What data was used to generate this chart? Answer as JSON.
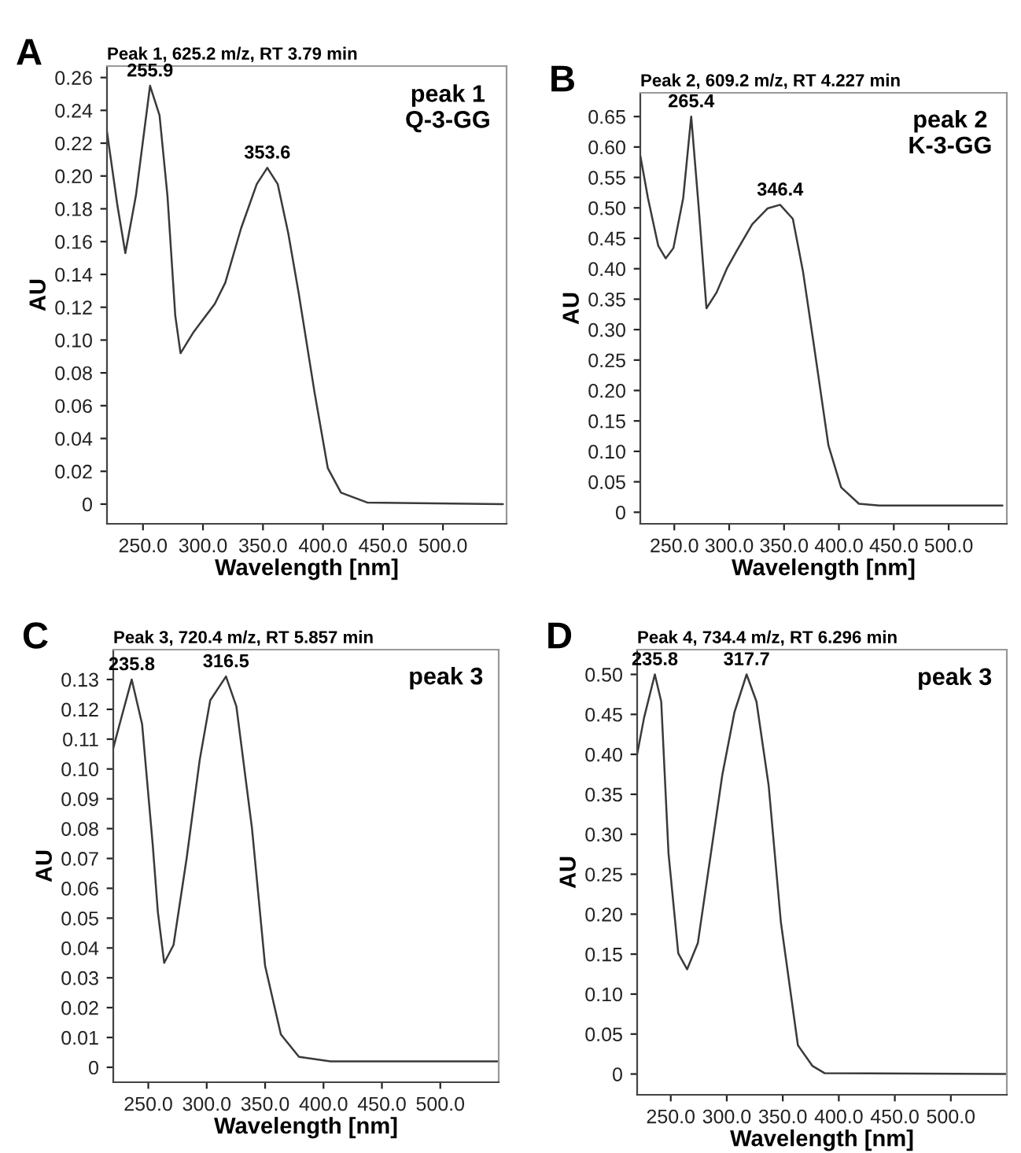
{
  "chart_data": [
    {
      "type": "line",
      "title": "Peak 1, 625.2 m/z, RT 3.79 min",
      "xlabel": "Wavelength [nm]",
      "ylabel": "AU",
      "x": [
        220,
        228.7,
        235.3,
        244.1,
        255.9,
        263.8,
        270.4,
        276.9,
        281.3,
        292.3,
        309.8,
        318.6,
        331.7,
        344.8,
        353.6,
        362.3,
        371.1,
        379.9,
        393,
        404,
        415,
        436.8,
        550
      ],
      "series": [
        {
          "color": "#3a3a3a",
          "values": [
            0.227,
            0.182,
            0.153,
            0.188,
            0.255,
            0.237,
            0.188,
            0.115,
            0.092,
            0.105,
            0.122,
            0.135,
            0.168,
            0.195,
            0.205,
            0.195,
            0.165,
            0.128,
            0.068,
            0.022,
            0.007,
            0.001,
            0.0
          ]
        }
      ],
      "xlim": [
        220,
        553
      ],
      "ylim": [
        -0.012,
        0.267
      ],
      "xticks": [
        {
          "value": 250,
          "label": "250.0"
        },
        {
          "value": 300,
          "label": "300.0"
        },
        {
          "value": 350,
          "label": "350.0"
        },
        {
          "value": 400,
          "label": "400.0"
        },
        {
          "value": 450,
          "label": "450.0"
        },
        {
          "value": 500,
          "label": "500.0"
        }
      ],
      "yticks": [
        {
          "value": 0,
          "label": "0"
        },
        {
          "value": 0.02,
          "label": "0.02"
        },
        {
          "value": 0.04,
          "label": "0.04"
        },
        {
          "value": 0.06,
          "label": "0.06"
        },
        {
          "value": 0.08,
          "label": "0.08"
        },
        {
          "value": 0.1,
          "label": "0.10"
        },
        {
          "value": 0.12,
          "label": "0.12"
        },
        {
          "value": 0.14,
          "label": "0.14"
        },
        {
          "value": 0.16,
          "label": "0.16"
        },
        {
          "value": 0.18,
          "label": "0.18"
        },
        {
          "value": 0.2,
          "label": "0.20"
        },
        {
          "value": 0.22,
          "label": "0.22"
        },
        {
          "value": 0.24,
          "label": "0.24"
        },
        {
          "value": 0.26,
          "label": "0.26"
        }
      ],
      "annotations": [
        "A",
        "peak 1\nQ-3-GG",
        {
          "text": "255.9",
          "x": 255.9,
          "y": 0.255
        },
        {
          "text": "353.6",
          "x": 353.6,
          "y": 0.205
        }
      ]
    },
    {
      "type": "line",
      "title": "Peak 2, 609.2 m/z, RT 4.227 min",
      "xlabel": "Wavelength [nm]",
      "ylabel": "AU",
      "x": [
        219.1,
        226,
        235.3,
        242.2,
        249.2,
        258.1,
        265.4,
        272.3,
        279.3,
        288.5,
        297.8,
        307.1,
        321,
        334.9,
        346.4,
        358,
        367.3,
        376.5,
        390.4,
        402,
        418.2,
        436.7,
        549
      ],
      "series": [
        {
          "color": "#3a3a3a",
          "values": [
            0.585,
            0.516,
            0.438,
            0.417,
            0.434,
            0.516,
            0.65,
            0.499,
            0.335,
            0.361,
            0.4,
            0.43,
            0.473,
            0.499,
            0.505,
            0.482,
            0.395,
            0.283,
            0.11,
            0.041,
            0.014,
            0.011,
            0.011
          ]
        }
      ],
      "xlim": [
        219,
        553
      ],
      "ylim": [
        -0.019,
        0.689
      ],
      "xticks": [
        {
          "value": 250,
          "label": "250.0"
        },
        {
          "value": 300,
          "label": "300.0"
        },
        {
          "value": 350,
          "label": "350.0"
        },
        {
          "value": 400,
          "label": "400.0"
        },
        {
          "value": 450,
          "label": "450.0"
        },
        {
          "value": 500,
          "label": "500.0"
        }
      ],
      "yticks": [
        {
          "value": 0,
          "label": "0"
        },
        {
          "value": 0.05,
          "label": "0.05"
        },
        {
          "value": 0.1,
          "label": "0.10"
        },
        {
          "value": 0.15,
          "label": "0.15"
        },
        {
          "value": 0.2,
          "label": "0.20"
        },
        {
          "value": 0.25,
          "label": "0.25"
        },
        {
          "value": 0.3,
          "label": "0.30"
        },
        {
          "value": 0.35,
          "label": "0.35"
        },
        {
          "value": 0.4,
          "label": "0.40"
        },
        {
          "value": 0.45,
          "label": "0.45"
        },
        {
          "value": 0.5,
          "label": "0.50"
        },
        {
          "value": 0.55,
          "label": "0.55"
        },
        {
          "value": 0.6,
          "label": "0.60"
        },
        {
          "value": 0.65,
          "label": "0.65"
        }
      ],
      "annotations": [
        "B",
        "peak 2\nK-3-GG",
        {
          "text": "265.4",
          "x": 265.4,
          "y": 0.65
        },
        {
          "text": "346.4",
          "x": 346.4,
          "y": 0.505
        }
      ]
    },
    {
      "type": "line",
      "title": "Peak 3, 720.4 m/z, RT 5.857 min",
      "xlabel": "Wavelength [nm]",
      "ylabel": "AU",
      "x": [
        220,
        226.8,
        235.8,
        244.7,
        253.7,
        258.2,
        263.6,
        271.6,
        282.8,
        294,
        303,
        316.5,
        325.4,
        338.8,
        350,
        363.5,
        379,
        406,
        549
      ],
      "series": [
        {
          "color": "#3a3a3a",
          "values": [
            0.107,
            0.117,
            0.13,
            0.115,
            0.075,
            0.052,
            0.035,
            0.041,
            0.07,
            0.103,
            0.123,
            0.131,
            0.121,
            0.08,
            0.034,
            0.011,
            0.0035,
            0.002,
            0.002
          ]
        }
      ],
      "xlim": [
        220,
        550
      ],
      "ylim": [
        -0.005,
        0.14
      ],
      "xticks": [
        {
          "value": 250,
          "label": "250.0"
        },
        {
          "value": 300,
          "label": "300.0"
        },
        {
          "value": 350,
          "label": "350.0"
        },
        {
          "value": 400,
          "label": "400.0"
        },
        {
          "value": 450,
          "label": "450.0"
        },
        {
          "value": 500,
          "label": "500.0"
        }
      ],
      "yticks": [
        {
          "value": 0,
          "label": "0"
        },
        {
          "value": 0.01,
          "label": "0.01"
        },
        {
          "value": 0.02,
          "label": "0.02"
        },
        {
          "value": 0.03,
          "label": "0.03"
        },
        {
          "value": 0.04,
          "label": "0.04"
        },
        {
          "value": 0.05,
          "label": "0.05"
        },
        {
          "value": 0.06,
          "label": "0.06"
        },
        {
          "value": 0.07,
          "label": "0.07"
        },
        {
          "value": 0.08,
          "label": "0.08"
        },
        {
          "value": 0.09,
          "label": "0.09"
        },
        {
          "value": 0.1,
          "label": "0.10"
        },
        {
          "value": 0.11,
          "label": "0.11"
        },
        {
          "value": 0.12,
          "label": "0.12"
        },
        {
          "value": 0.13,
          "label": "0.13"
        }
      ],
      "annotations": [
        "C",
        "peak 3",
        {
          "text": "235.8",
          "x": 235.8,
          "y": 0.13
        },
        {
          "text": "316.5",
          "x": 316.5,
          "y": 0.131
        }
      ]
    },
    {
      "type": "line",
      "title": "Peak 4, 734.4 m/z, RT 6.296 min",
      "xlabel": "Wavelength [nm]",
      "ylabel": "AU",
      "x": [
        220,
        226.2,
        235.8,
        241.5,
        248,
        256.7,
        264.6,
        274.2,
        285.1,
        296,
        306.9,
        317.7,
        326.5,
        337.4,
        348.3,
        363.5,
        376.6,
        387.5,
        550
      ],
      "series": [
        {
          "color": "#3a3a3a",
          "values": [
            0.4,
            0.446,
            0.5,
            0.466,
            0.276,
            0.151,
            0.131,
            0.164,
            0.269,
            0.374,
            0.453,
            0.5,
            0.466,
            0.361,
            0.19,
            0.036,
            0.01,
            0.001,
            0.0
          ]
        }
      ],
      "xlim": [
        220,
        550
      ],
      "ylim": [
        -0.026,
        0.531
      ],
      "xticks": [
        {
          "value": 250,
          "label": "250.0"
        },
        {
          "value": 300,
          "label": "300.0"
        },
        {
          "value": 350,
          "label": "350.0"
        },
        {
          "value": 400,
          "label": "400.0"
        },
        {
          "value": 450,
          "label": "450.0"
        },
        {
          "value": 500,
          "label": "500.0"
        }
      ],
      "yticks": [
        {
          "value": 0,
          "label": "0"
        },
        {
          "value": 0.05,
          "label": "0.05"
        },
        {
          "value": 0.1,
          "label": "0.10"
        },
        {
          "value": 0.15,
          "label": "0.15"
        },
        {
          "value": 0.2,
          "label": "0.20"
        },
        {
          "value": 0.25,
          "label": "0.25"
        },
        {
          "value": 0.3,
          "label": "0.30"
        },
        {
          "value": 0.35,
          "label": "0.35"
        },
        {
          "value": 0.4,
          "label": "0.40"
        },
        {
          "value": 0.45,
          "label": "0.45"
        },
        {
          "value": 0.5,
          "label": "0.50"
        }
      ],
      "annotations": [
        "D",
        "peak 3",
        {
          "text": "235.8",
          "x": 235.8,
          "y": 0.5
        },
        {
          "text": "317.7",
          "x": 317.7,
          "y": 0.5
        }
      ]
    }
  ]
}
